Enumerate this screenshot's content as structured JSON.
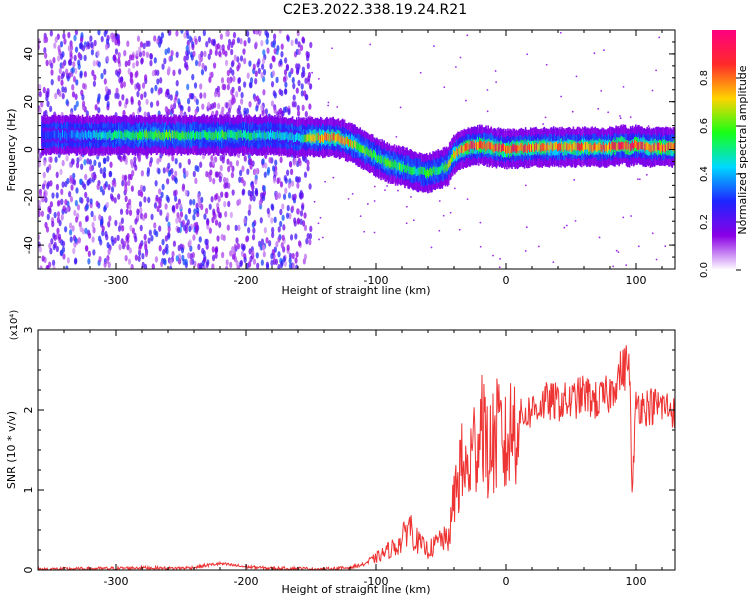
{
  "page_title": "C2E3.2022.338.19.24.R21",
  "chart_data": [
    {
      "type": "heatmap",
      "xlabel": "Height of straight line (km)",
      "ylabel": "Frequency (Hz)",
      "xlim": [
        -360,
        130
      ],
      "ylim": [
        -50,
        50
      ],
      "xticks": [
        -300,
        -200,
        -100,
        0,
        100
      ],
      "yticks": [
        -40,
        -20,
        0,
        20,
        40
      ],
      "colorbar": {
        "label": "Normalized spectral amplitude",
        "range": [
          0.0,
          1.0
        ],
        "ticks": [
          0.0,
          0.2,
          0.4,
          0.6,
          0.8
        ],
        "colors": [
          "#ffffff",
          "#8a00e6",
          "#1e24ff",
          "#00d9ff",
          "#16ff16",
          "#ffd400",
          "#ff2a2a",
          "#ff0080"
        ]
      },
      "noise_region_xmax": -150,
      "ridge": {
        "x": [
          -355,
          -340,
          -320,
          -300,
          -280,
          -260,
          -240,
          -220,
          -200,
          -180,
          -160,
          -150,
          -140,
          -130,
          -120,
          -110,
          -100,
          -90,
          -80,
          -70,
          -60,
          -50,
          -45,
          -40,
          -30,
          -20,
          -10,
          0,
          20,
          40,
          60,
          80,
          90,
          95,
          100,
          110,
          120,
          130
        ],
        "y": [
          6,
          6,
          6,
          6,
          6,
          6,
          6,
          6,
          6,
          6,
          5,
          5,
          5,
          5,
          3,
          0,
          -3,
          -6,
          -7,
          -9,
          -10,
          -8,
          -7,
          -2,
          1,
          2,
          1,
          0,
          1,
          1,
          1,
          1,
          2,
          1,
          2,
          1,
          1,
          1
        ],
        "amplitude": [
          0.3,
          0.35,
          0.4,
          0.5,
          0.55,
          0.6,
          0.5,
          0.55,
          0.5,
          0.45,
          0.4,
          0.7,
          0.75,
          0.75,
          0.7,
          0.6,
          0.55,
          0.6,
          0.55,
          0.5,
          0.55,
          0.5,
          0.6,
          0.7,
          0.85,
          0.85,
          0.8,
          0.85,
          0.8,
          0.75,
          0.8,
          0.8,
          0.9,
          0.85,
          0.85,
          0.8,
          0.85,
          0.85
        ]
      }
    },
    {
      "type": "line",
      "xlabel": "Height of straight line (km)",
      "ylabel": "SNR (10 * v/v)",
      "y_multiplier": "(x10⁴)",
      "xlim": [
        -360,
        130
      ],
      "ylim": [
        0,
        3
      ],
      "xticks": [
        -300,
        -200,
        -100,
        0,
        100
      ],
      "yticks": [
        0,
        1,
        2,
        3
      ],
      "series": [
        {
          "color": "#ee3333",
          "x": [
            -360,
            -300,
            -280,
            -260,
            -240,
            -230,
            -220,
            -200,
            -180,
            -160,
            -140,
            -120,
            -110,
            -100,
            -90,
            -85,
            -80,
            -75,
            -70,
            -65,
            -60,
            -55,
            -50,
            -45,
            -42,
            -40,
            -35,
            -30,
            -25,
            -20,
            -18,
            -15,
            -10,
            -5,
            0,
            5,
            10,
            20,
            30,
            40,
            50,
            60,
            70,
            80,
            85,
            90,
            95,
            97,
            100,
            105,
            110,
            120,
            130
          ],
          "y": [
            0.01,
            0.02,
            0.03,
            0.02,
            0.03,
            0.06,
            0.08,
            0.04,
            0.02,
            0.02,
            0.01,
            0.03,
            0.07,
            0.15,
            0.25,
            0.3,
            0.35,
            0.6,
            0.4,
            0.3,
            0.25,
            0.3,
            0.4,
            0.35,
            0.6,
            0.9,
            1.3,
            1.2,
            1.5,
            1.8,
            2.1,
            1.4,
            1.6,
            1.7,
            1.5,
            1.8,
            1.9,
            2.0,
            2.1,
            2.1,
            2.1,
            2.2,
            2.1,
            2.2,
            2.4,
            2.5,
            2.6,
            0.9,
            2.1,
            2.05,
            2.05,
            2.05,
            2.0
          ]
        }
      ]
    }
  ]
}
